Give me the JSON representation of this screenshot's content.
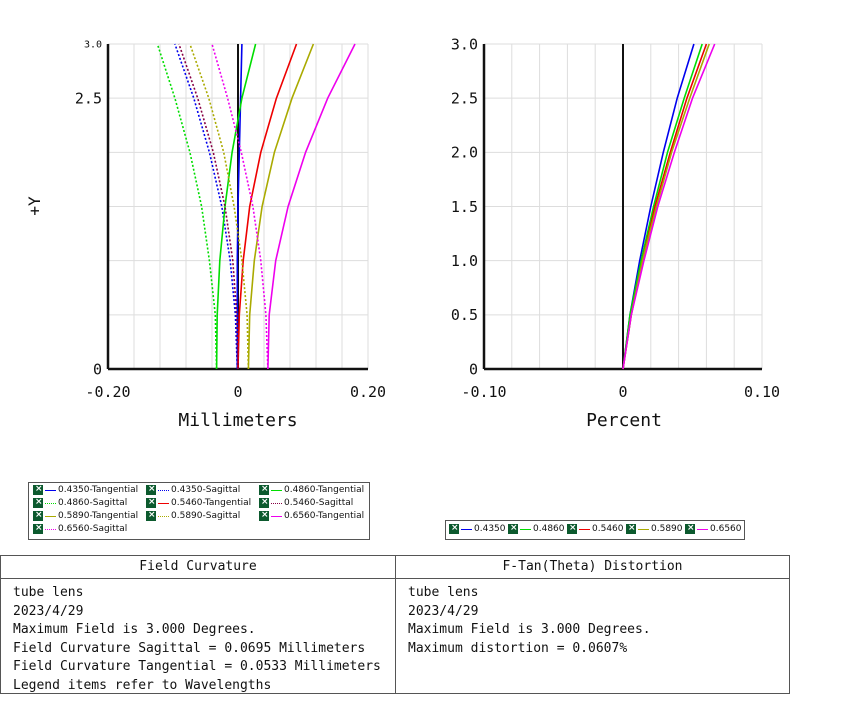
{
  "chart_data": [
    {
      "type": "line",
      "title": "Field Curvature",
      "xlabel": "Millimeters",
      "ylabel": "+Y",
      "xlim": [
        -0.2,
        0.2
      ],
      "ylim": [
        0,
        3.0
      ],
      "xticks": [
        "-0.20",
        "0",
        "0.20"
      ],
      "yticks": [
        "0",
        "2.5",
        "3.0"
      ],
      "grid": true,
      "series": [
        {
          "name": "0.4350-Tangential",
          "color": "#0000ee",
          "dash": false,
          "x": [
            -0.001,
            -0.001,
            -0.001,
            0.0,
            0.002,
            0.004,
            0.006
          ],
          "y": [
            0.0,
            0.5,
            1.0,
            1.5,
            2.0,
            2.5,
            3.0
          ]
        },
        {
          "name": "0.4350-Sagittal",
          "color": "#0000ee",
          "dash": true,
          "x": [
            -0.001,
            -0.004,
            -0.012,
            -0.025,
            -0.044,
            -0.068,
            -0.097
          ],
          "y": [
            0.0,
            0.5,
            1.0,
            1.5,
            2.0,
            2.5,
            3.0
          ]
        },
        {
          "name": "0.4860-Tangential",
          "color": "#00dd00",
          "dash": false,
          "x": [
            -0.033,
            -0.032,
            -0.028,
            -0.02,
            -0.009,
            0.006,
            0.027
          ],
          "y": [
            0.0,
            0.5,
            1.0,
            1.5,
            2.0,
            2.5,
            3.0
          ]
        },
        {
          "name": "0.4860-Sagittal",
          "color": "#00dd00",
          "dash": true,
          "x": [
            -0.033,
            -0.035,
            -0.044,
            -0.056,
            -0.074,
            -0.097,
            -0.124
          ],
          "y": [
            0.0,
            0.5,
            1.0,
            1.5,
            2.0,
            2.5,
            3.0
          ]
        },
        {
          "name": "0.5460-Tangential",
          "color": "#ee0000",
          "dash": false,
          "x": [
            0.0,
            0.002,
            0.008,
            0.018,
            0.035,
            0.059,
            0.09
          ],
          "y": [
            0.0,
            0.5,
            1.0,
            1.5,
            2.0,
            2.5,
            3.0
          ]
        },
        {
          "name": "0.5460-Sagittal",
          "color": "#880044",
          "dash": true,
          "x": [
            0.0,
            -0.002,
            -0.008,
            -0.02,
            -0.038,
            -0.062,
            -0.091
          ],
          "y": [
            0.0,
            0.5,
            1.0,
            1.5,
            2.0,
            2.5,
            3.0
          ]
        },
        {
          "name": "0.5890-Tangential",
          "color": "#aaaa00",
          "dash": false,
          "x": [
            0.016,
            0.018,
            0.025,
            0.037,
            0.056,
            0.083,
            0.116
          ],
          "y": [
            0.0,
            0.5,
            1.0,
            1.5,
            2.0,
            2.5,
            3.0
          ]
        },
        {
          "name": "0.5890-Sagittal",
          "color": "#aaaa00",
          "dash": true,
          "x": [
            0.016,
            0.014,
            0.006,
            -0.006,
            -0.022,
            -0.045,
            -0.074
          ],
          "y": [
            0.0,
            0.5,
            1.0,
            1.5,
            2.0,
            2.5,
            3.0
          ]
        },
        {
          "name": "0.6560-Tangential",
          "color": "#ee00ee",
          "dash": false,
          "x": [
            0.046,
            0.048,
            0.058,
            0.077,
            0.104,
            0.138,
            0.18
          ],
          "y": [
            0.0,
            0.5,
            1.0,
            1.5,
            2.0,
            2.5,
            3.0
          ]
        },
        {
          "name": "0.6560-Sagittal",
          "color": "#ee00ee",
          "dash": true,
          "x": [
            0.046,
            0.043,
            0.035,
            0.023,
            0.005,
            -0.016,
            -0.04
          ],
          "y": [
            0.0,
            0.5,
            1.0,
            1.5,
            2.0,
            2.5,
            3.0
          ]
        }
      ]
    },
    {
      "type": "line",
      "title": "F-Tan(Theta) Distortion",
      "xlabel": "Percent",
      "ylabel": "",
      "xlim": [
        -0.1,
        0.1
      ],
      "ylim": [
        0,
        3.0
      ],
      "xticks": [
        "-0.10",
        "0",
        "0.10"
      ],
      "yticks": [
        "0",
        "0.5",
        "1.0",
        "1.5",
        "2.0",
        "2.5",
        "3.0"
      ],
      "grid": true,
      "series": [
        {
          "name": "0.4350",
          "color": "#0000ee",
          "x": [
            0.0,
            0.005,
            0.012,
            0.02,
            0.029,
            0.039,
            0.051
          ],
          "y": [
            0.0,
            0.5,
            1.0,
            1.5,
            2.0,
            2.5,
            3.0
          ]
        },
        {
          "name": "0.4860",
          "color": "#00dd00",
          "x": [
            0.0,
            0.005,
            0.013,
            0.022,
            0.032,
            0.044,
            0.057
          ],
          "y": [
            0.0,
            0.5,
            1.0,
            1.5,
            2.0,
            2.5,
            3.0
          ]
        },
        {
          "name": "0.5460",
          "color": "#ee0000",
          "x": [
            0.0,
            0.006,
            0.014,
            0.023,
            0.034,
            0.046,
            0.06
          ],
          "y": [
            0.0,
            0.5,
            1.0,
            1.5,
            2.0,
            2.5,
            3.0
          ]
        },
        {
          "name": "0.5890",
          "color": "#aaaa00",
          "x": [
            0.0,
            0.006,
            0.014,
            0.024,
            0.035,
            0.048,
            0.062
          ],
          "y": [
            0.0,
            0.5,
            1.0,
            1.5,
            2.0,
            2.5,
            3.0
          ]
        },
        {
          "name": "0.6560",
          "color": "#ee00ee",
          "x": [
            0.0,
            0.006,
            0.015,
            0.025,
            0.037,
            0.05,
            0.066
          ],
          "y": [
            0.0,
            0.5,
            1.0,
            1.5,
            2.0,
            2.5,
            3.0
          ]
        }
      ]
    }
  ],
  "legends": {
    "left": [
      "0.4350-Tangential",
      "0.4350-Sagittal",
      "0.4860-Tangential",
      "0.4860-Sagittal",
      "0.5460-Tangential",
      "0.5460-Sagittal",
      "0.5890-Tangential",
      "0.5890-Sagittal",
      "0.6560-Tangential",
      "0.6560-Sagittal"
    ],
    "right": [
      "0.4350",
      "0.4860",
      "0.5460",
      "0.5890",
      "0.6560"
    ]
  },
  "info": {
    "left": {
      "header": "Field Curvature",
      "lines": [
        "tube lens",
        "2023/4/29",
        "Maximum Field is 3.000 Degrees.",
        "Field Curvature Sagittal = 0.0695 Millimeters",
        "Field Curvature Tangential = 0.0533 Millimeters",
        "Legend items refer to Wavelengths"
      ]
    },
    "right": {
      "header": "F-Tan(Theta) Distortion",
      "lines": [
        "tube lens",
        "2023/4/29",
        "Maximum Field is 3.000 Degrees.",
        "Maximum distortion = 0.0607%"
      ]
    }
  }
}
